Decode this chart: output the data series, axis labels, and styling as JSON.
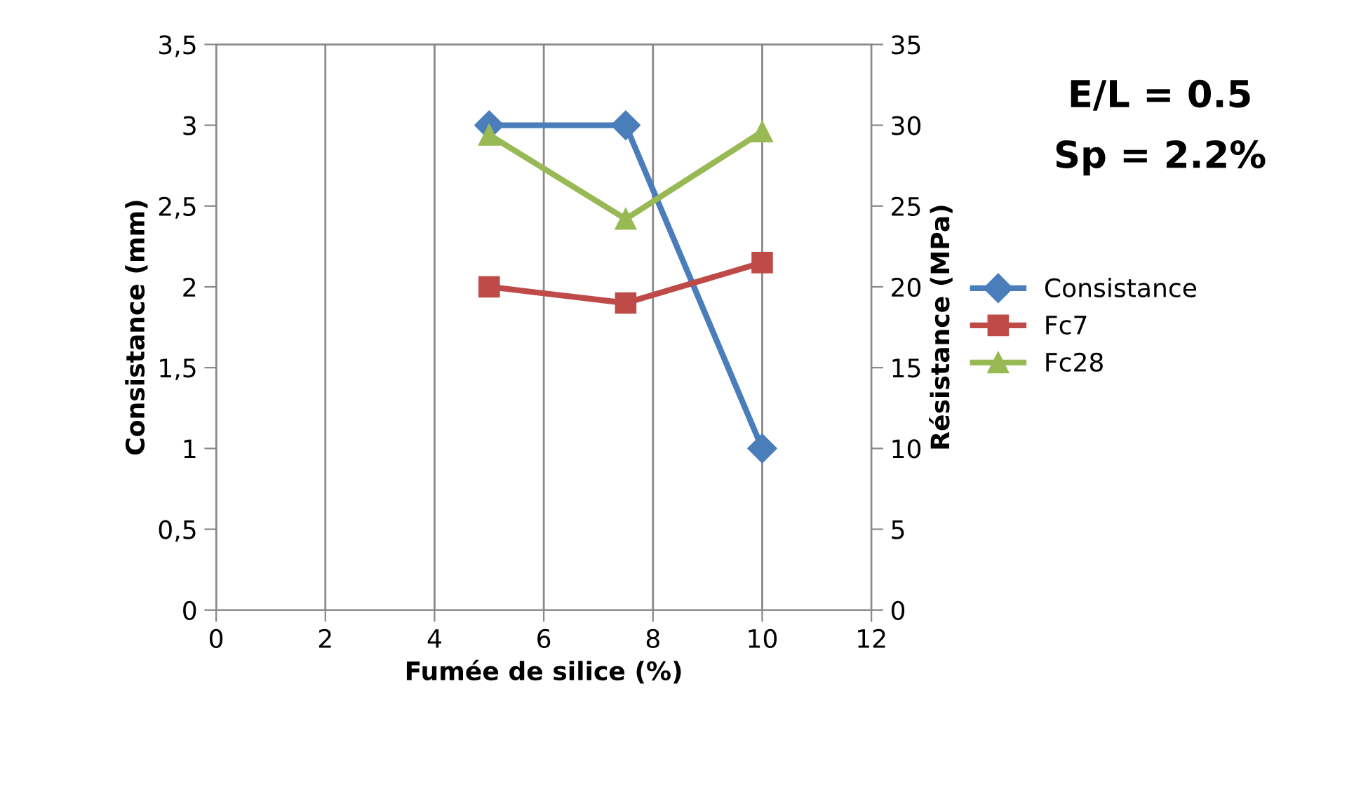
{
  "chart_data": {
    "type": "line",
    "xlabel": "Fumée de silice (%)",
    "ylabel": "Consistance (mm)",
    "y2label": "Résistance (MPa)",
    "x": [
      5,
      7.5,
      10
    ],
    "series": [
      {
        "name": "Consistance",
        "color": "#4a7ebb",
        "values": [
          3,
          3,
          1
        ],
        "marker": "diamond"
      },
      {
        "name": "Fc7",
        "color": "#be4b48",
        "values": [
          20.0,
          19.0,
          21.5
        ],
        "marker": "square",
        "axis": "y2"
      },
      {
        "name": "Fc28",
        "color": "#98b954",
        "values": [
          29.4,
          24.2,
          29.6
        ],
        "marker": "triangle",
        "axis": "y2"
      }
    ],
    "xlim": [
      0,
      12
    ],
    "xticks": [
      0,
      2,
      4,
      6,
      8,
      10,
      12
    ],
    "ylim": [
      0,
      3.5
    ],
    "yticks": [
      0,
      {
        "value": 0.5,
        "label": "0,5"
      },
      1,
      {
        "value": 1.5,
        "label": "1,5"
      },
      2,
      {
        "value": 2.5,
        "label": "2,5"
      },
      3,
      {
        "value": 3.5,
        "label": "3,5"
      }
    ],
    "y2lim": [
      0,
      35
    ],
    "y2ticks": [
      0,
      5,
      10,
      15,
      20,
      25,
      30,
      35
    ],
    "grid": "x",
    "legend": "right",
    "line_style": "solid",
    "annotations": [
      "E/L = 0.5",
      "Sp = 2.2%"
    ]
  }
}
